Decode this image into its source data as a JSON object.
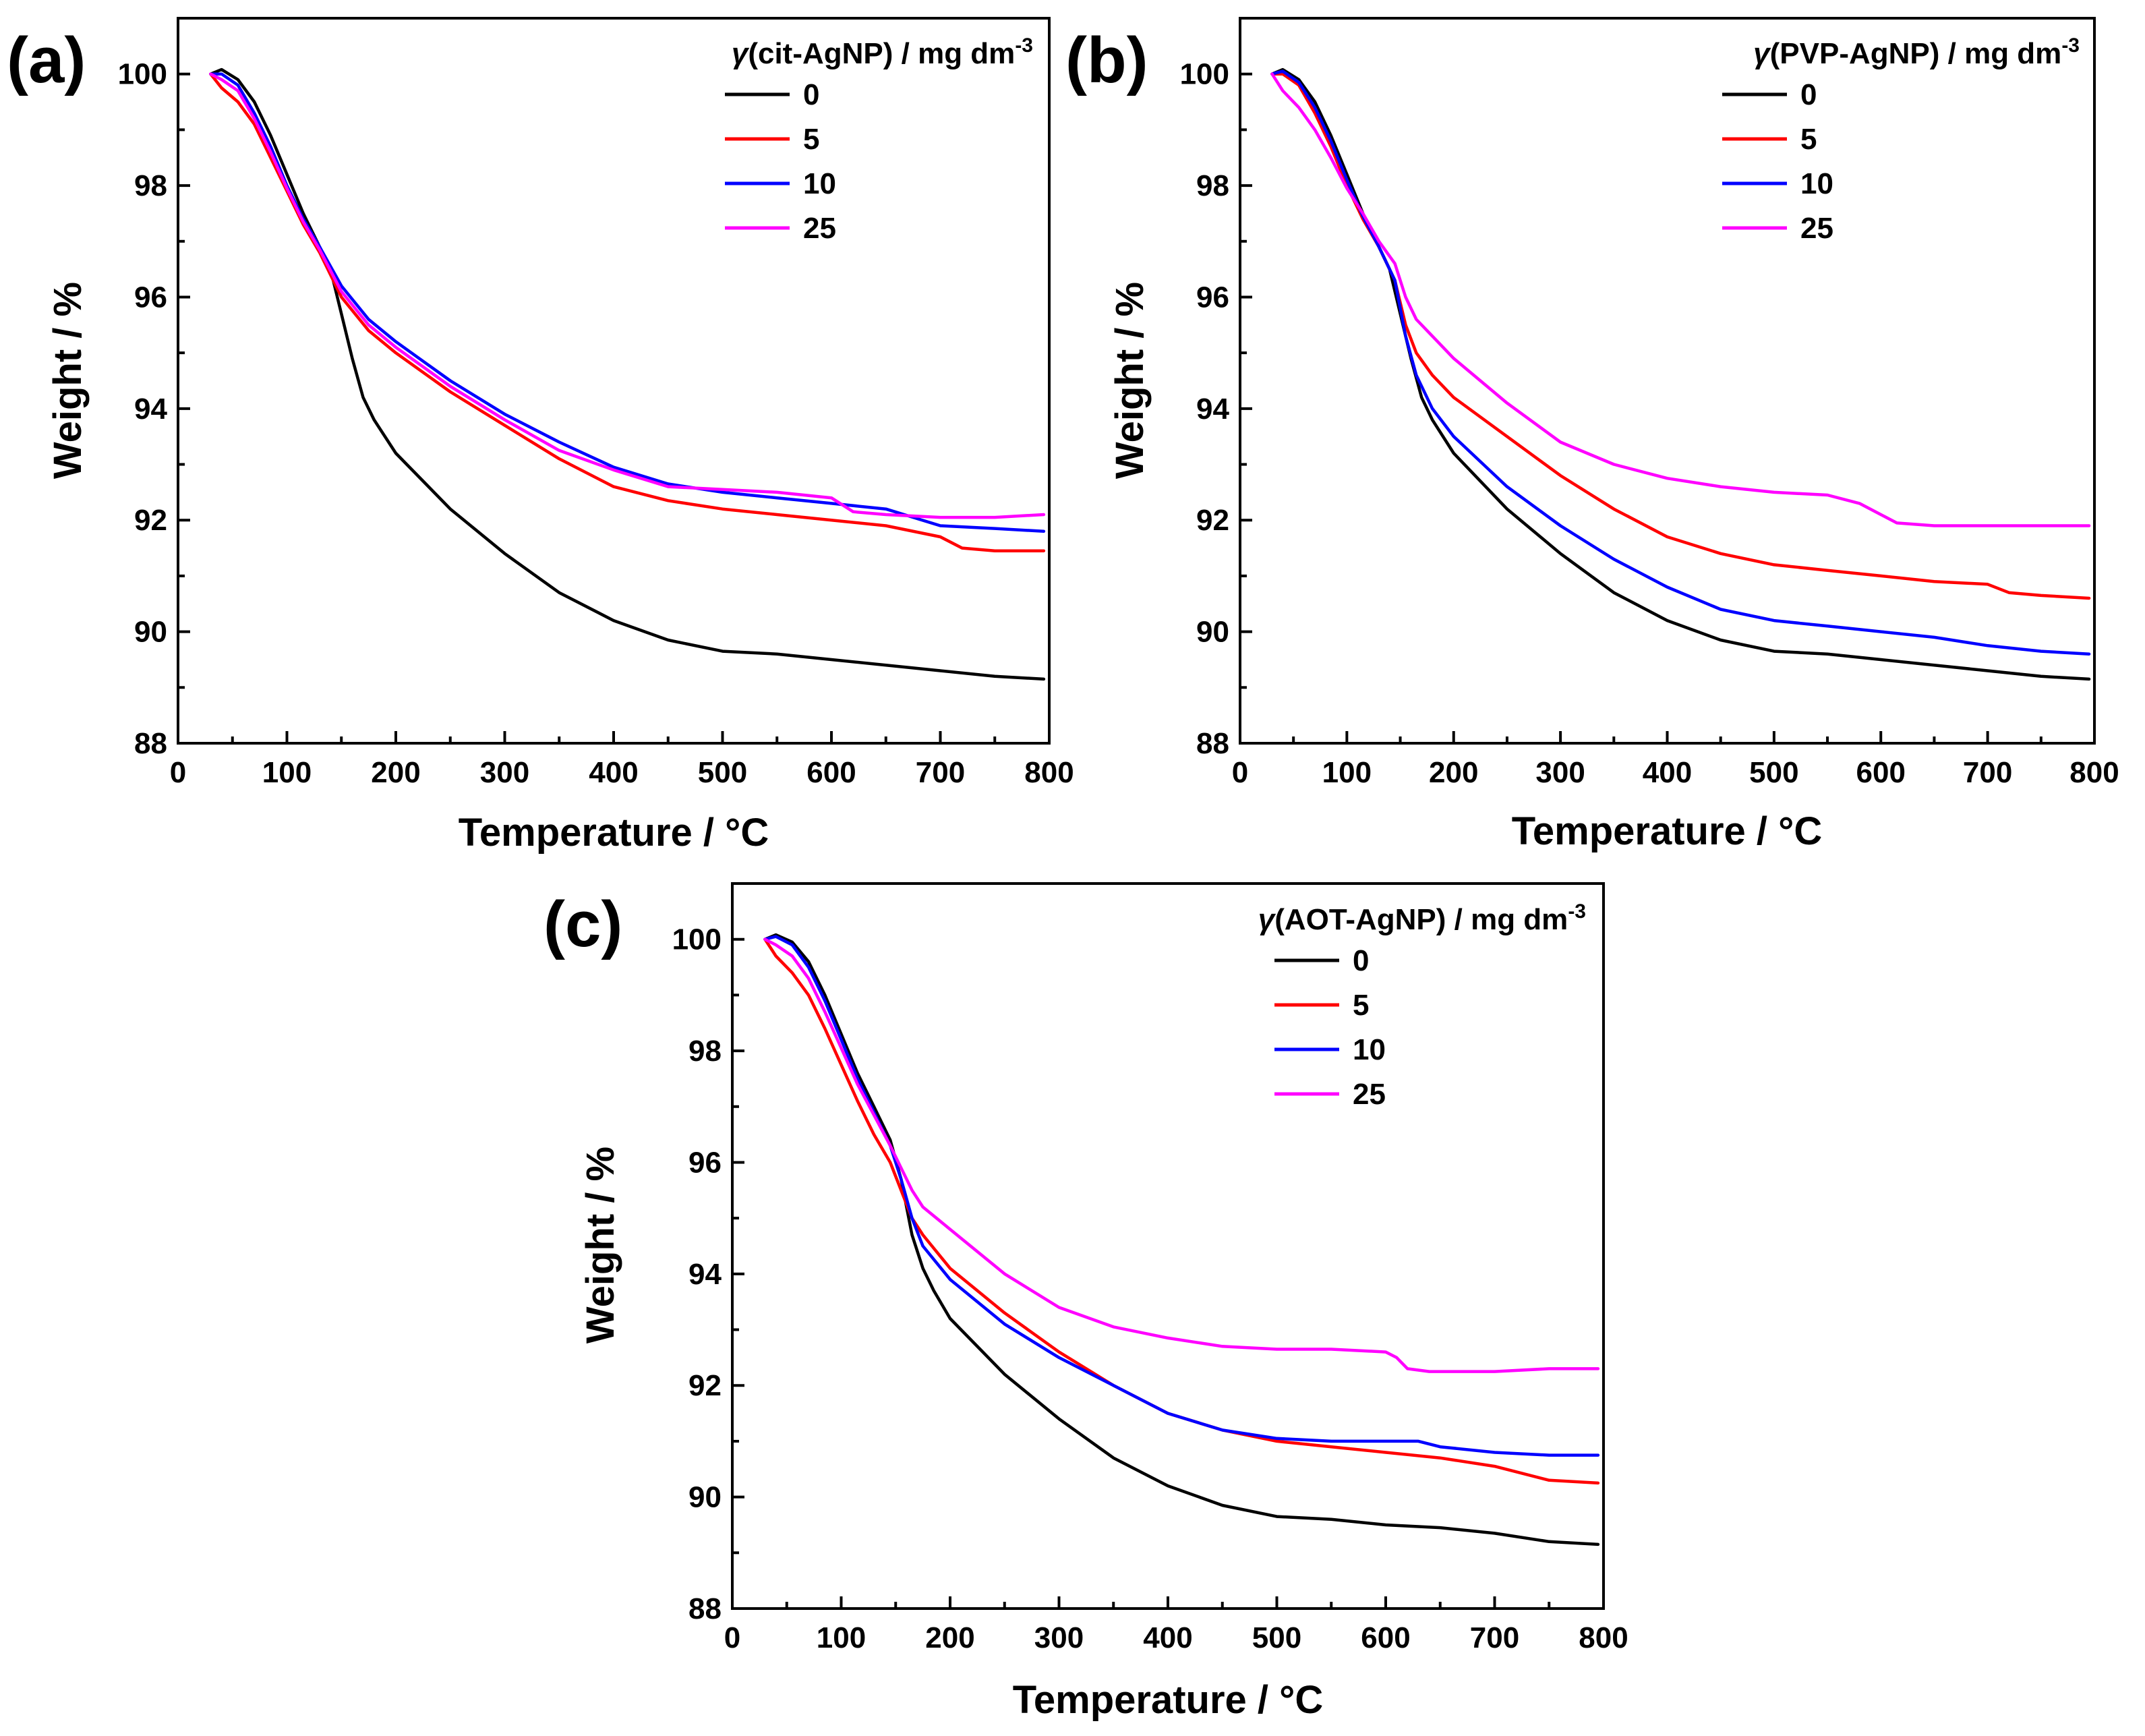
{
  "figure": {
    "panels": [
      "(a)",
      "(b)",
      "(c)"
    ]
  },
  "chart_data": [
    {
      "type": "line",
      "panel": "(a)",
      "title": "",
      "xlabel": "Temperature / °C",
      "ylabel": "Weight / %",
      "xlim": [
        0,
        800
      ],
      "ylim": [
        88,
        101
      ],
      "xticks": [
        0,
        100,
        200,
        300,
        400,
        500,
        600,
        700,
        800
      ],
      "yticks": [
        88,
        90,
        92,
        94,
        96,
        98,
        100
      ],
      "grid": false,
      "legend": {
        "gamma": "γ",
        "title": "(cit-AgNP) / mg dm",
        "exp": "-3",
        "placement": "top-right"
      },
      "series": [
        {
          "name": "0",
          "color": "#000000",
          "x": [
            30,
            40,
            55,
            70,
            85,
            100,
            115,
            130,
            140,
            150,
            160,
            170,
            180,
            200,
            250,
            300,
            350,
            400,
            450,
            500,
            550,
            600,
            650,
            700,
            750,
            795
          ],
          "y": [
            100.0,
            100.08,
            99.9,
            99.5,
            98.9,
            98.2,
            97.5,
            96.9,
            96.5,
            95.7,
            94.9,
            94.2,
            93.8,
            93.2,
            92.2,
            91.4,
            90.7,
            90.2,
            89.85,
            89.65,
            89.6,
            89.5,
            89.4,
            89.3,
            89.2,
            89.15
          ]
        },
        {
          "name": "5",
          "color": "#ff0000",
          "x": [
            30,
            40,
            55,
            70,
            85,
            100,
            115,
            130,
            150,
            175,
            200,
            250,
            300,
            350,
            400,
            450,
            500,
            550,
            600,
            650,
            700,
            720,
            750,
            795
          ],
          "y": [
            100.0,
            99.75,
            99.5,
            99.1,
            98.5,
            97.9,
            97.3,
            96.8,
            96.0,
            95.4,
            95.0,
            94.3,
            93.7,
            93.1,
            92.6,
            92.35,
            92.2,
            92.1,
            92.0,
            91.9,
            91.7,
            91.5,
            91.45,
            91.45
          ]
        },
        {
          "name": "10",
          "color": "#0000ff",
          "x": [
            30,
            40,
            55,
            70,
            85,
            100,
            115,
            130,
            150,
            175,
            200,
            250,
            300,
            350,
            400,
            450,
            500,
            550,
            600,
            650,
            700,
            750,
            795
          ],
          "y": [
            100.0,
            100.0,
            99.8,
            99.3,
            98.7,
            98.0,
            97.4,
            96.9,
            96.2,
            95.6,
            95.2,
            94.5,
            93.9,
            93.4,
            92.95,
            92.65,
            92.5,
            92.4,
            92.3,
            92.2,
            91.9,
            91.85,
            91.8
          ]
        },
        {
          "name": "25",
          "color": "#ff00ff",
          "x": [
            30,
            40,
            55,
            70,
            85,
            100,
            115,
            130,
            150,
            175,
            200,
            250,
            300,
            350,
            400,
            450,
            500,
            550,
            600,
            620,
            650,
            700,
            750,
            795
          ],
          "y": [
            100.0,
            99.9,
            99.7,
            99.2,
            98.6,
            97.95,
            97.35,
            96.85,
            96.1,
            95.5,
            95.1,
            94.4,
            93.8,
            93.25,
            92.9,
            92.6,
            92.55,
            92.5,
            92.4,
            92.15,
            92.1,
            92.05,
            92.05,
            92.1
          ]
        }
      ]
    },
    {
      "type": "line",
      "panel": "(b)",
      "title": "",
      "xlabel": "Temperature / °C",
      "ylabel": "Weight / %",
      "xlim": [
        0,
        800
      ],
      "ylim": [
        88,
        101
      ],
      "xticks": [
        0,
        100,
        200,
        300,
        400,
        500,
        600,
        700,
        800
      ],
      "yticks": [
        88,
        90,
        92,
        94,
        96,
        98,
        100
      ],
      "grid": false,
      "legend": {
        "gamma": "γ",
        "title": "(PVP-AgNP) / mg dm",
        "exp": "-3",
        "placement": "top-right"
      },
      "series": [
        {
          "name": "0",
          "color": "#000000",
          "x": [
            30,
            40,
            55,
            70,
            85,
            100,
            115,
            130,
            140,
            150,
            160,
            170,
            180,
            200,
            250,
            300,
            350,
            400,
            450,
            500,
            550,
            600,
            650,
            700,
            750,
            795
          ],
          "y": [
            100.0,
            100.08,
            99.9,
            99.5,
            98.9,
            98.2,
            97.5,
            96.9,
            96.5,
            95.7,
            94.9,
            94.2,
            93.8,
            93.2,
            92.2,
            91.4,
            90.7,
            90.2,
            89.85,
            89.65,
            89.6,
            89.5,
            89.4,
            89.3,
            89.2,
            89.15
          ]
        },
        {
          "name": "5",
          "color": "#ff0000",
          "x": [
            30,
            40,
            55,
            70,
            85,
            100,
            115,
            130,
            145,
            155,
            165,
            180,
            200,
            250,
            300,
            350,
            400,
            450,
            500,
            550,
            600,
            650,
            700,
            720,
            750,
            795
          ],
          "y": [
            100.0,
            100.0,
            99.8,
            99.3,
            98.7,
            98.0,
            97.4,
            96.9,
            96.3,
            95.5,
            95.0,
            94.6,
            94.2,
            93.5,
            92.8,
            92.2,
            91.7,
            91.4,
            91.2,
            91.1,
            91.0,
            90.9,
            90.85,
            90.7,
            90.65,
            90.6
          ]
        },
        {
          "name": "10",
          "color": "#0000ff",
          "x": [
            30,
            40,
            55,
            70,
            85,
            100,
            115,
            130,
            145,
            155,
            165,
            180,
            200,
            250,
            300,
            350,
            400,
            450,
            500,
            550,
            600,
            650,
            700,
            750,
            795
          ],
          "y": [
            100.0,
            100.05,
            99.85,
            99.4,
            98.8,
            98.1,
            97.45,
            96.9,
            96.3,
            95.3,
            94.6,
            94.0,
            93.5,
            92.6,
            91.9,
            91.3,
            90.8,
            90.4,
            90.2,
            90.1,
            90.0,
            89.9,
            89.75,
            89.65,
            89.6
          ]
        },
        {
          "name": "25",
          "color": "#ff00ff",
          "x": [
            30,
            40,
            55,
            70,
            85,
            100,
            115,
            130,
            145,
            155,
            165,
            180,
            200,
            250,
            300,
            350,
            400,
            450,
            500,
            550,
            580,
            600,
            615,
            650,
            700,
            750,
            795
          ],
          "y": [
            100.0,
            99.7,
            99.4,
            99.0,
            98.5,
            97.95,
            97.5,
            97.0,
            96.6,
            96.0,
            95.6,
            95.3,
            94.9,
            94.1,
            93.4,
            93.0,
            92.75,
            92.6,
            92.5,
            92.45,
            92.3,
            92.1,
            91.95,
            91.9,
            91.9,
            91.9,
            91.9
          ]
        }
      ]
    },
    {
      "type": "line",
      "panel": "(c)",
      "title": "",
      "xlabel": "Temperature / °C",
      "ylabel": "Weight / %",
      "xlim": [
        0,
        800
      ],
      "ylim": [
        88,
        101
      ],
      "xticks": [
        0,
        100,
        200,
        300,
        400,
        500,
        600,
        700,
        800
      ],
      "yticks": [
        88,
        90,
        92,
        94,
        96,
        98,
        100
      ],
      "grid": false,
      "legend": {
        "gamma": "γ",
        "title": "(AOT-AgNP) / mg dm",
        "exp": "-3",
        "placement": "top-right"
      },
      "series": [
        {
          "name": "0",
          "color": "#000000",
          "x": [
            30,
            40,
            55,
            70,
            85,
            100,
            115,
            130,
            145,
            155,
            165,
            175,
            185,
            200,
            250,
            300,
            350,
            400,
            450,
            500,
            550,
            600,
            650,
            700,
            750,
            795
          ],
          "y": [
            100.0,
            100.08,
            99.95,
            99.6,
            99.0,
            98.3,
            97.6,
            97.0,
            96.4,
            95.7,
            94.7,
            94.1,
            93.7,
            93.2,
            92.2,
            91.4,
            90.7,
            90.2,
            89.85,
            89.65,
            89.6,
            89.5,
            89.45,
            89.35,
            89.2,
            89.15
          ]
        },
        {
          "name": "5",
          "color": "#ff0000",
          "x": [
            30,
            40,
            55,
            70,
            85,
            100,
            115,
            130,
            145,
            155,
            165,
            175,
            200,
            250,
            300,
            350,
            400,
            450,
            500,
            550,
            600,
            650,
            700,
            750,
            795
          ],
          "y": [
            100.0,
            99.7,
            99.4,
            99.0,
            98.4,
            97.75,
            97.1,
            96.5,
            96.0,
            95.5,
            95.0,
            94.7,
            94.1,
            93.3,
            92.6,
            92.0,
            91.5,
            91.2,
            91.0,
            90.9,
            90.8,
            90.7,
            90.55,
            90.3,
            90.25
          ]
        },
        {
          "name": "10",
          "color": "#0000ff",
          "x": [
            30,
            40,
            55,
            70,
            85,
            100,
            115,
            130,
            145,
            155,
            165,
            175,
            200,
            250,
            300,
            350,
            400,
            450,
            500,
            550,
            600,
            630,
            650,
            700,
            750,
            795
          ],
          "y": [
            100.0,
            100.05,
            99.9,
            99.5,
            98.9,
            98.2,
            97.5,
            96.9,
            96.3,
            95.7,
            95.0,
            94.5,
            93.9,
            93.1,
            92.5,
            92.0,
            91.5,
            91.2,
            91.05,
            91.0,
            91.0,
            91.0,
            90.9,
            90.8,
            90.75,
            90.75
          ]
        },
        {
          "name": "25",
          "color": "#ff00ff",
          "x": [
            30,
            40,
            55,
            70,
            85,
            100,
            115,
            130,
            145,
            155,
            165,
            175,
            200,
            250,
            300,
            350,
            400,
            450,
            500,
            550,
            600,
            610,
            620,
            640,
            700,
            750,
            795
          ],
          "y": [
            100.0,
            99.9,
            99.7,
            99.3,
            98.7,
            98.05,
            97.4,
            96.85,
            96.3,
            95.9,
            95.5,
            95.2,
            94.8,
            94.0,
            93.4,
            93.05,
            92.85,
            92.7,
            92.65,
            92.65,
            92.6,
            92.5,
            92.3,
            92.25,
            92.25,
            92.3,
            92.3
          ]
        }
      ]
    }
  ]
}
